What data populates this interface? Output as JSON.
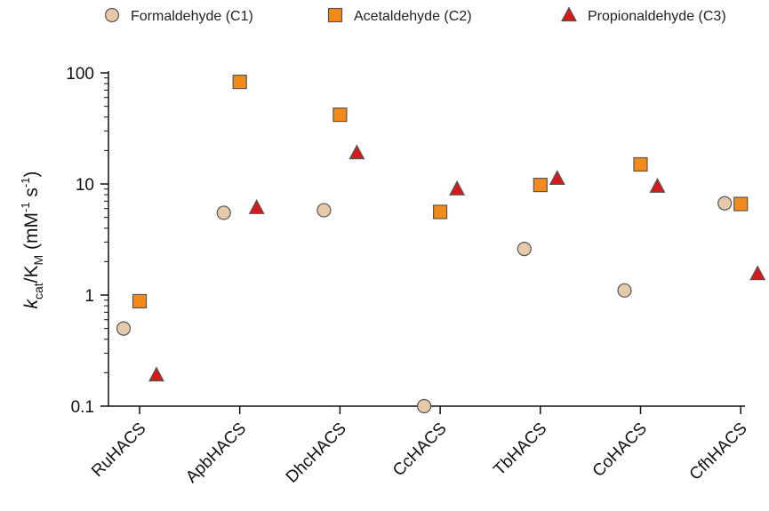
{
  "chart_data": {
    "type": "scatter",
    "ylabel": {
      "k": "k",
      "k_sub": "cat",
      "slash": "/K",
      "K_sub": "M",
      "open": " (mM",
      "sup1": "-1",
      "s": " s",
      "sup2": "-1",
      "close": ")"
    },
    "yscale": "log",
    "ylim": [
      0.1,
      100
    ],
    "yticks": [
      {
        "value": 0.1,
        "label": "0.1"
      },
      {
        "value": 1,
        "label": "1"
      },
      {
        "value": 10,
        "label": "10"
      },
      {
        "value": 100,
        "label": "100"
      }
    ],
    "categories": [
      "RuHACS",
      "ApbHACS",
      "DhcHACS",
      "CcHACS",
      "TbHACS",
      "CoHACS",
      "CfhHACS"
    ],
    "legend_position": "top",
    "grid": false,
    "series": [
      {
        "name": "Formaldehyde (C1)",
        "marker": "circle",
        "color": "#e6c9a8",
        "values": [
          0.5,
          5.5,
          5.8,
          0.1,
          2.6,
          1.1,
          6.7
        ]
      },
      {
        "name": "Acetaldehyde (C2)",
        "marker": "square",
        "color": "#f28a1c",
        "values": [
          0.88,
          83,
          42,
          5.6,
          9.8,
          15,
          6.6
        ]
      },
      {
        "name": "Propionaldehyde (C3)",
        "marker": "triangle",
        "color": "#d7191c",
        "values": [
          0.19,
          6.1,
          19,
          9,
          11.2,
          9.5,
          1.55
        ]
      }
    ]
  }
}
